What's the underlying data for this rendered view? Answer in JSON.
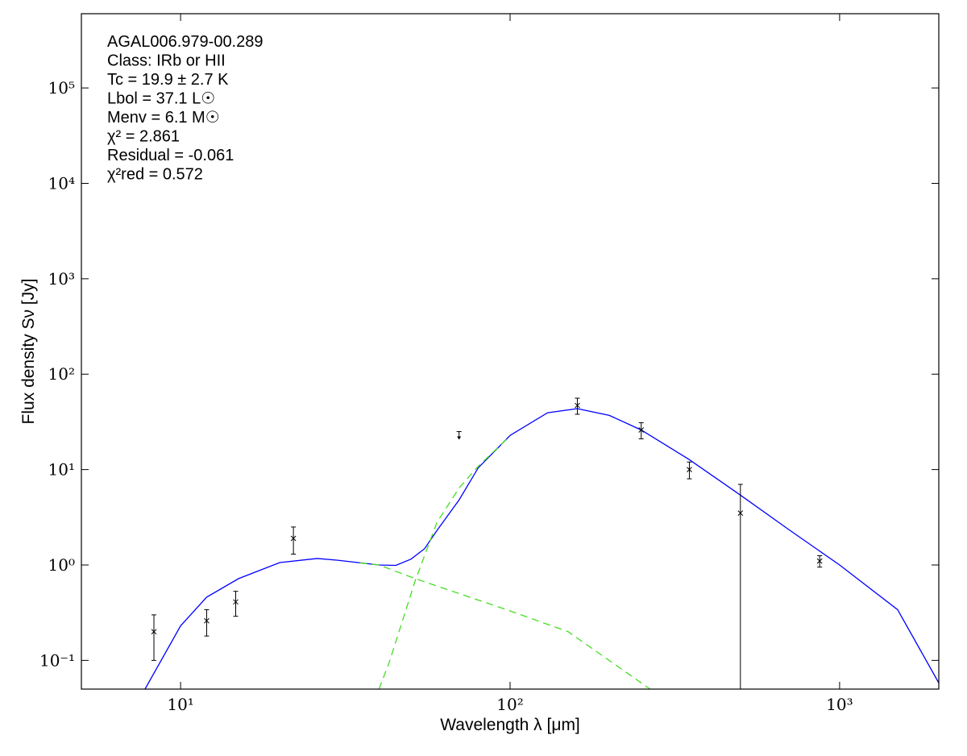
{
  "chart_data": {
    "type": "line",
    "xlabel": "Wavelength λ [μm]",
    "ylabel": "Flux density Sν [Jy]",
    "log_x": true,
    "log_y": true,
    "xlim": [
      5,
      2000
    ],
    "ylim": [
      0.05,
      600000
    ],
    "xticks": [
      {
        "value": 10,
        "label": "10¹"
      },
      {
        "value": 100,
        "label": "10²"
      },
      {
        "value": 1000,
        "label": "10³"
      }
    ],
    "yticks": [
      {
        "value": 0.1,
        "label": "10⁻¹"
      },
      {
        "value": 1,
        "label": "10⁰"
      },
      {
        "value": 10,
        "label": "10¹"
      },
      {
        "value": 100,
        "label": "10²"
      },
      {
        "value": 1000,
        "label": "10³"
      },
      {
        "value": 10000,
        "label": "10⁴"
      },
      {
        "value": 100000,
        "label": "10⁵"
      }
    ],
    "annotations": [
      "AGAL006.979-00.289",
      "Class: IRb or HII",
      "Tc = 19.9 ± 2.7 K",
      "Lbol = 37.1 L☉",
      "Menv = 6.1 M☉",
      "χ² = 2.861",
      "Residual = -0.061",
      "χ²red = 0.572"
    ],
    "series": [
      {
        "color": "#0000ff",
        "dashed": false,
        "x": [
          7.8,
          10,
          12,
          15,
          20,
          26,
          30,
          40,
          45,
          50,
          55,
          60,
          70,
          80,
          100,
          130,
          160,
          200,
          250,
          350,
          500,
          700,
          1000,
          1500,
          2000
        ],
        "values": [
          0.05,
          0.23,
          0.46,
          0.72,
          1.06,
          1.17,
          1.12,
          1.0,
          0.99,
          1.15,
          1.48,
          2.3,
          4.8,
          10.4,
          22.8,
          39.4,
          43.5,
          37,
          26,
          12.7,
          5.4,
          2.36,
          1.0,
          0.34,
          0.058
        ]
      },
      {
        "color": "#44dd22",
        "dashed": true,
        "x": [
          40,
          43,
          51.5,
          60,
          70,
          80,
          100
        ],
        "values": [
          0.05,
          0.096,
          0.68,
          2.8,
          6.4,
          10.8,
          22.5
        ]
      },
      {
        "color": "#44dd22",
        "dashed": true,
        "x": [
          35,
          40,
          51.5,
          100,
          150,
          266
        ],
        "values": [
          1.05,
          1.0,
          0.72,
          0.33,
          0.2,
          0.05
        ]
      }
    ],
    "points": {
      "color": "#000000",
      "x": [
        8.3,
        12,
        14.7,
        22,
        160,
        250,
        350,
        500,
        870
      ],
      "values": [
        0.2,
        0.26,
        0.41,
        1.9,
        47,
        26,
        10,
        3.5,
        1.1
      ],
      "errors": [
        0.1,
        0.08,
        0.12,
        0.6,
        9,
        5,
        2,
        3.5,
        0.15
      ]
    },
    "upper_limits": {
      "color": "#000000",
      "x": [
        70
      ],
      "values": [
        25
      ]
    }
  }
}
